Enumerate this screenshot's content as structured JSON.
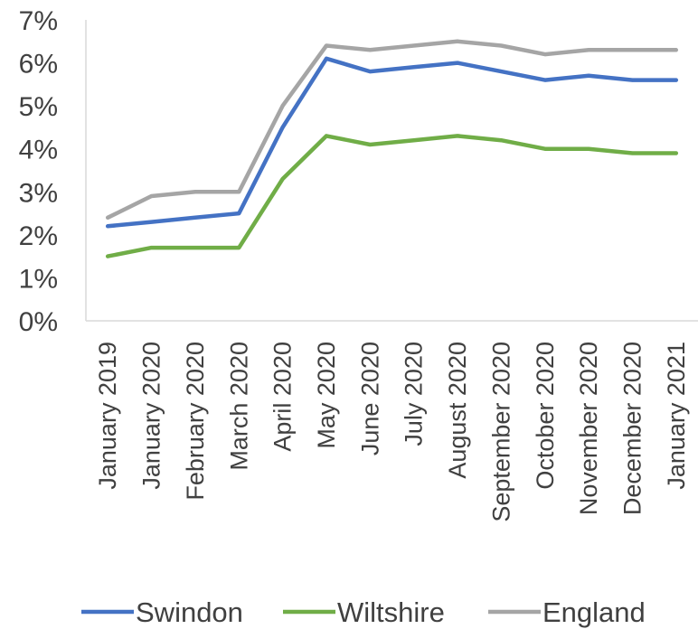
{
  "chart_data": {
    "type": "line",
    "title": "",
    "xlabel": "",
    "ylabel": "",
    "ylim": [
      0,
      0.07
    ],
    "y_tick_labels": [
      "0%",
      "1%",
      "2%",
      "3%",
      "4%",
      "5%",
      "6%",
      "7%"
    ],
    "grid": false,
    "legend_position": "bottom",
    "categories": [
      "January 2019",
      "January 2020",
      "February 2020",
      "March 2020",
      "April 2020",
      "May 2020",
      "June 2020",
      "July 2020",
      "August 2020",
      "September 2020",
      "October 2020",
      "November 2020",
      "December 2020",
      "January 2021"
    ],
    "series": [
      {
        "name": "Swindon",
        "color": "#4472c4",
        "values": [
          0.022,
          0.023,
          0.024,
          0.025,
          0.045,
          0.061,
          0.058,
          0.059,
          0.06,
          0.058,
          0.056,
          0.057,
          0.056,
          0.056
        ]
      },
      {
        "name": "Wiltshire",
        "color": "#70ad47",
        "values": [
          0.015,
          0.017,
          0.017,
          0.017,
          0.033,
          0.043,
          0.041,
          0.042,
          0.043,
          0.042,
          0.04,
          0.04,
          0.039,
          0.039
        ]
      },
      {
        "name": "England",
        "color": "#a5a5a5",
        "values": [
          0.024,
          0.029,
          0.03,
          0.03,
          0.05,
          0.064,
          0.063,
          0.064,
          0.065,
          0.064,
          0.062,
          0.063,
          0.063,
          0.063
        ]
      }
    ]
  }
}
